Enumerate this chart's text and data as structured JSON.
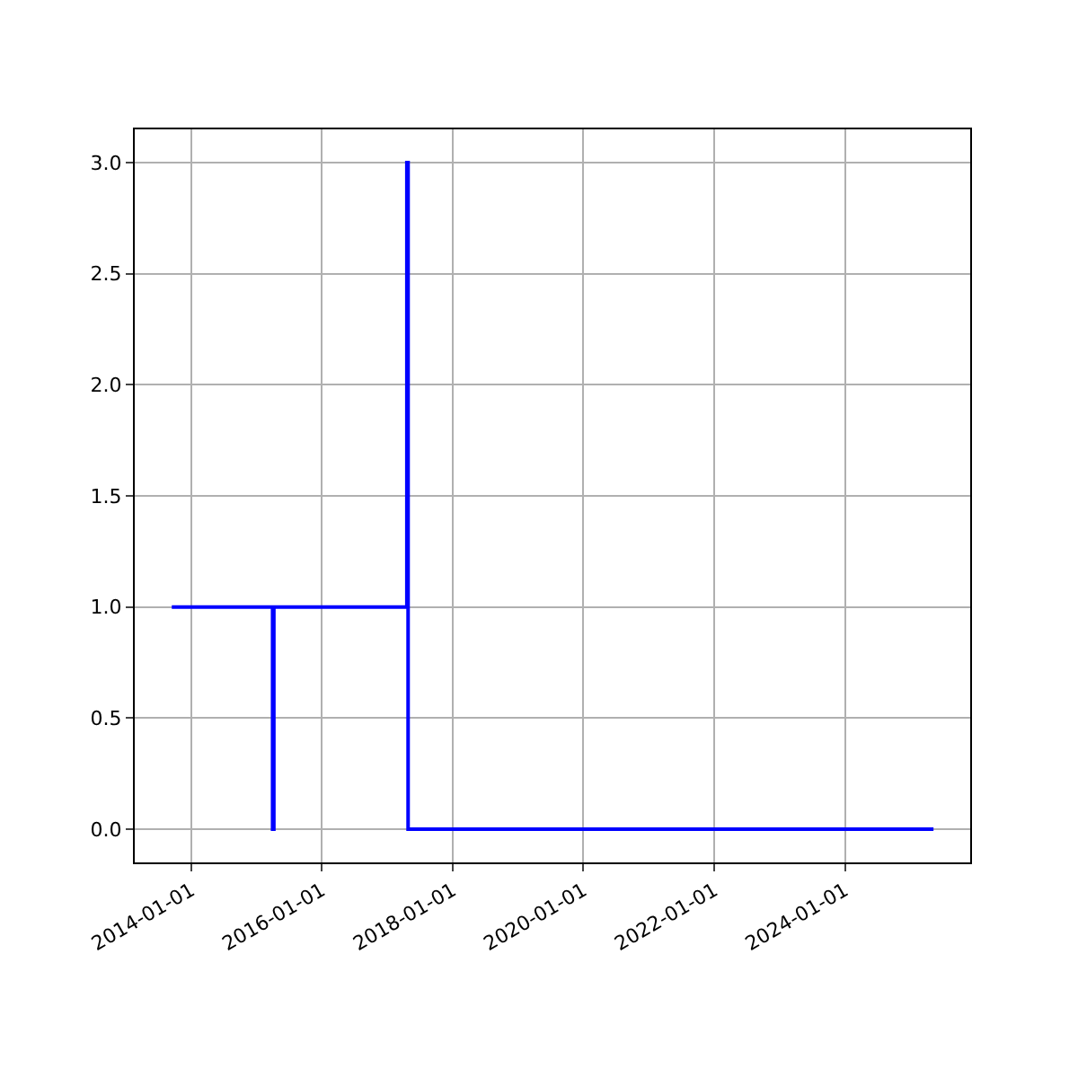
{
  "chart_data": {
    "type": "line",
    "x": [
      "2013-09-15",
      "2015-04-01",
      "2015-04-01",
      "2015-04-08",
      "2015-04-08",
      "2017-04-20",
      "2017-04-20",
      "2017-04-27",
      "2017-04-27",
      "2025-05-10"
    ],
    "values": [
      1,
      1,
      0,
      0,
      1,
      1,
      3,
      3,
      0,
      0
    ],
    "color": "#0000ff",
    "xlim": [
      "2013-02-20",
      "2025-12-01"
    ],
    "xticks": [
      {
        "value": "2014-01-01",
        "label": "2014-01-01"
      },
      {
        "value": "2016-01-01",
        "label": "2016-01-01"
      },
      {
        "value": "2018-01-01",
        "label": "2018-01-01"
      },
      {
        "value": "2020-01-01",
        "label": "2020-01-01"
      },
      {
        "value": "2022-01-01",
        "label": "2022-01-01"
      },
      {
        "value": "2024-01-01",
        "label": "2024-01-01"
      }
    ],
    "ylim": [
      -0.15,
      3.15
    ],
    "yticks": [
      {
        "value": 0,
        "label": "0.0"
      },
      {
        "value": 0.5,
        "label": "0.5"
      },
      {
        "value": 1,
        "label": "1.0"
      },
      {
        "value": 1.5,
        "label": "1.5"
      },
      {
        "value": 2,
        "label": "2.0"
      },
      {
        "value": 2.5,
        "label": "2.5"
      },
      {
        "value": 3,
        "label": "3.0"
      }
    ],
    "grid": true,
    "legend": false,
    "marker": "none",
    "line_style": "solid"
  }
}
